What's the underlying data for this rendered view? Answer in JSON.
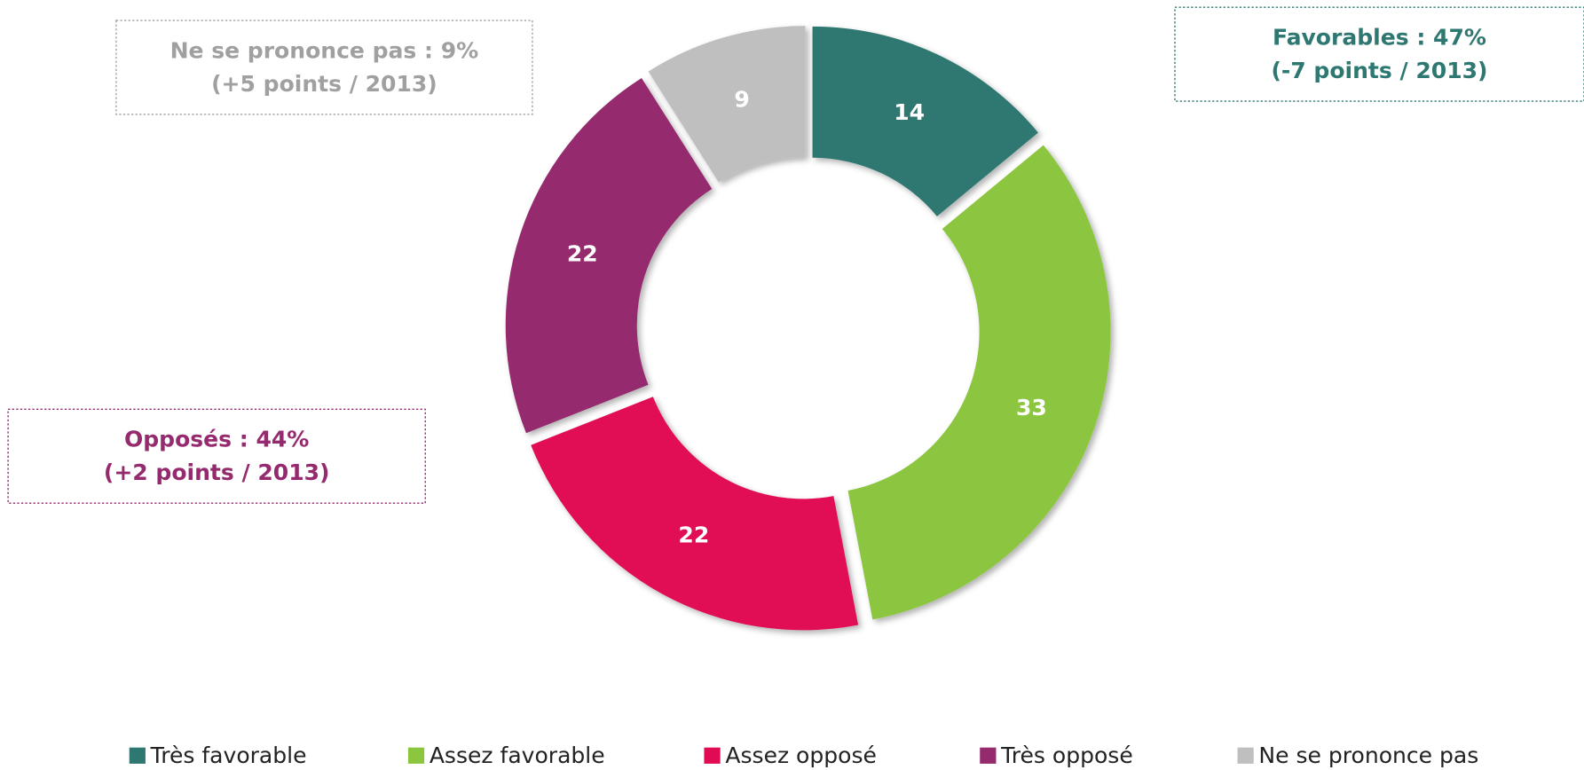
{
  "chart_data": {
    "type": "donut",
    "categories": [
      "Très favorable",
      "Assez favorable",
      "Assez opposé",
      "Très opposé",
      "Ne se prononce pas"
    ],
    "values": [
      14,
      33,
      22,
      22,
      9
    ],
    "colors": [
      "#2e7871",
      "#8cc63f",
      "#e10a55",
      "#962a6e",
      "#bfbfbf"
    ],
    "legend": "bottom",
    "annotations": [
      {
        "lines": [
          "Ne se prononce pas :  9%",
          "(+5 points / 2013)"
        ],
        "color": "#a0a0a0"
      },
      {
        "lines": [
          "Favorables : 47%",
          "(-7 points / 2013)"
        ],
        "color": "#2e7871"
      },
      {
        "lines": [
          "Opposés :  44%",
          "(+2 points / 2013)"
        ],
        "color": "#962a6e"
      }
    ]
  }
}
